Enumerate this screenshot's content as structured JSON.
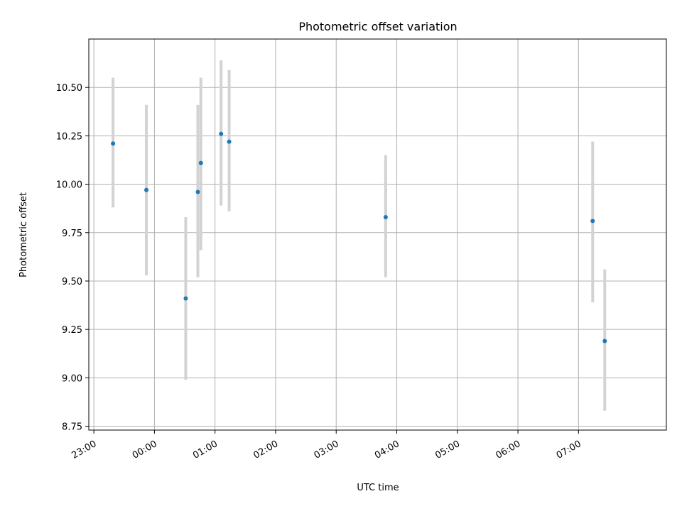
{
  "chart_data": {
    "type": "scatter",
    "title": "Photometric offset variation",
    "xlabel": "UTC time",
    "ylabel": "Photometric offset",
    "x_ticks": [
      "23:00",
      "00:00",
      "01:00",
      "02:00",
      "03:00",
      "04:00",
      "05:00",
      "06:00",
      "07:00"
    ],
    "x_range": [
      "22:55",
      "08:27"
    ],
    "y_ticks": [
      "8.75",
      "9.00",
      "9.25",
      "9.50",
      "9.75",
      "10.00",
      "10.25",
      "10.50"
    ],
    "ylim": [
      8.73,
      10.75
    ],
    "grid": true,
    "points": [
      {
        "x": "23:19",
        "y": 10.21,
        "err_low": 9.88,
        "err_high": 10.55
      },
      {
        "x": "23:52",
        "y": 9.97,
        "err_low": 9.53,
        "err_high": 10.41
      },
      {
        "x": "00:31",
        "y": 9.41,
        "err_low": 8.99,
        "err_high": 9.83
      },
      {
        "x": "00:43",
        "y": 9.96,
        "err_low": 9.52,
        "err_high": 10.41
      },
      {
        "x": "00:46",
        "y": 10.11,
        "err_low": 9.66,
        "err_high": 10.55
      },
      {
        "x": "01:06",
        "y": 10.26,
        "err_low": 9.89,
        "err_high": 10.64
      },
      {
        "x": "01:14",
        "y": 10.22,
        "err_low": 9.86,
        "err_high": 10.59
      },
      {
        "x": "03:49",
        "y": 9.83,
        "err_low": 9.52,
        "err_high": 10.15
      },
      {
        "x": "07:14",
        "y": 9.81,
        "err_low": 9.39,
        "err_high": 10.22
      },
      {
        "x": "07:26",
        "y": 9.19,
        "err_low": 8.83,
        "err_high": 9.56
      }
    ],
    "colors": {
      "marker": "#1f77b4",
      "errorbar": "#d3d3d3",
      "grid": "#b0b0b0"
    }
  }
}
